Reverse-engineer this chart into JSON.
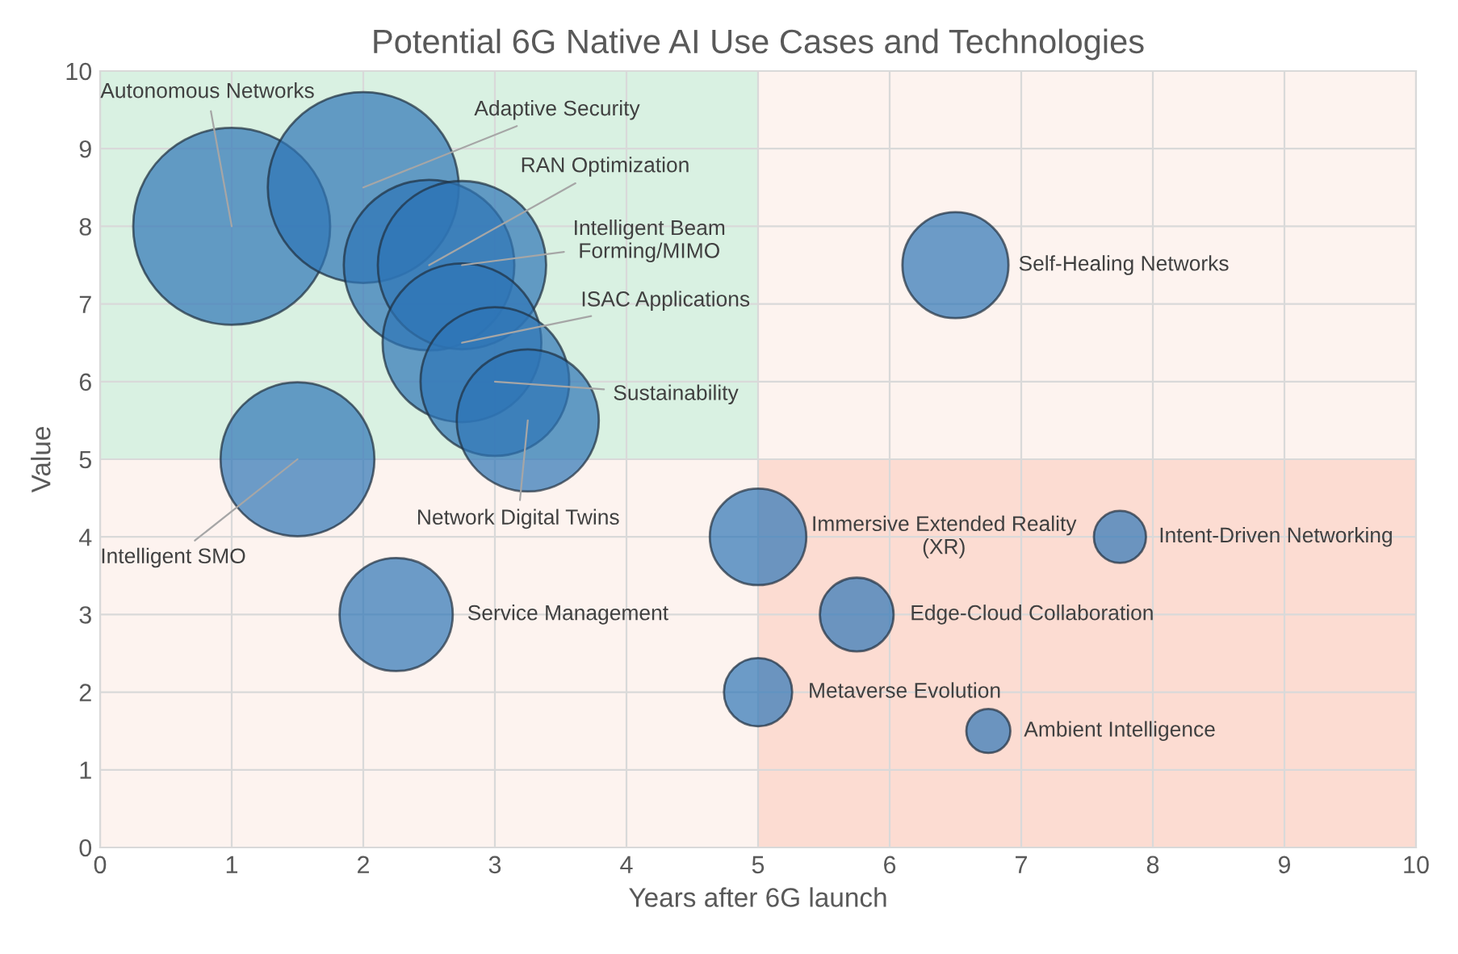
{
  "chart_data": {
    "type": "bubble",
    "title": "Potential 6G Native AI Use Cases and Technologies",
    "xlabel": "Years after 6G launch",
    "ylabel": "Value",
    "xlim": [
      0,
      10
    ],
    "ylim": [
      0,
      10
    ],
    "xticks": [
      0,
      1,
      2,
      3,
      4,
      5,
      6,
      7,
      8,
      9,
      10
    ],
    "yticks": [
      0,
      1,
      2,
      3,
      4,
      5,
      6,
      7,
      8,
      9,
      10
    ],
    "grid": true,
    "legend": false,
    "series": [
      {
        "name": "Autonomous Networks",
        "color": "#2e75b6",
        "x": [
          1
        ],
        "values": [
          8
        ],
        "sizes": [
          1
        ]
      },
      {
        "name": "Adaptive Security",
        "color": "#2e75b6",
        "x": [
          2
        ],
        "values": [
          8.5
        ],
        "sizes": [
          0.94
        ]
      },
      {
        "name": "RAN Optimization",
        "color": "#2e75b6",
        "x": [
          2.5
        ],
        "values": [
          7.5
        ],
        "sizes": [
          0.75
        ]
      },
      {
        "name": "Intelligent Beam\nForming/MIMO",
        "color": "#2e75b6",
        "x": [
          2.75
        ],
        "values": [
          7.5
        ],
        "sizes": [
          0.73
        ]
      },
      {
        "name": "ISAC Applications",
        "color": "#2e75b6",
        "x": [
          2.75
        ],
        "values": [
          6.5
        ],
        "sizes": [
          0.65
        ]
      },
      {
        "name": "Sustainability",
        "color": "#2e75b6",
        "x": [
          3
        ],
        "values": [
          6
        ],
        "sizes": [
          0.57
        ]
      },
      {
        "name": "Network Digital Twins",
        "color": "#2e75b6",
        "x": [
          3.25
        ],
        "values": [
          5.5
        ],
        "sizes": [
          0.52
        ]
      },
      {
        "name": "Intelligent SMO",
        "color": "#2e75b6",
        "x": [
          1.5
        ],
        "values": [
          5
        ],
        "sizes": [
          0.61
        ]
      },
      {
        "name": "Service Management",
        "color": "#2e75b6",
        "x": [
          2.25
        ],
        "values": [
          3
        ],
        "sizes": [
          0.33
        ]
      },
      {
        "name": "Self-Healing Networks",
        "color": "#2e75b6",
        "x": [
          6.5
        ],
        "values": [
          7.5
        ],
        "sizes": [
          0.29
        ]
      },
      {
        "name": "Immersive Extended Reality\n(XR)",
        "color": "#2e75b6",
        "x": [
          5
        ],
        "values": [
          4
        ],
        "sizes": [
          0.24
        ]
      },
      {
        "name": "Edge-Cloud Collaboration",
        "color": "#2e75b6",
        "x": [
          5.75
        ],
        "values": [
          3
        ],
        "sizes": [
          0.14
        ]
      },
      {
        "name": "Metaverse Evolution",
        "color": "#2e75b6",
        "x": [
          5
        ],
        "values": [
          2
        ],
        "sizes": [
          0.12
        ]
      },
      {
        "name": "Intent-Driven Networking",
        "color": "#2e75b6",
        "x": [
          7.75
        ],
        "values": [
          4
        ],
        "sizes": [
          0.07
        ]
      },
      {
        "name": "Ambient Intelligence",
        "color": "#2e75b6",
        "x": [
          6.75
        ],
        "values": [
          1.5
        ],
        "sizes": [
          0.05
        ]
      }
    ]
  }
}
